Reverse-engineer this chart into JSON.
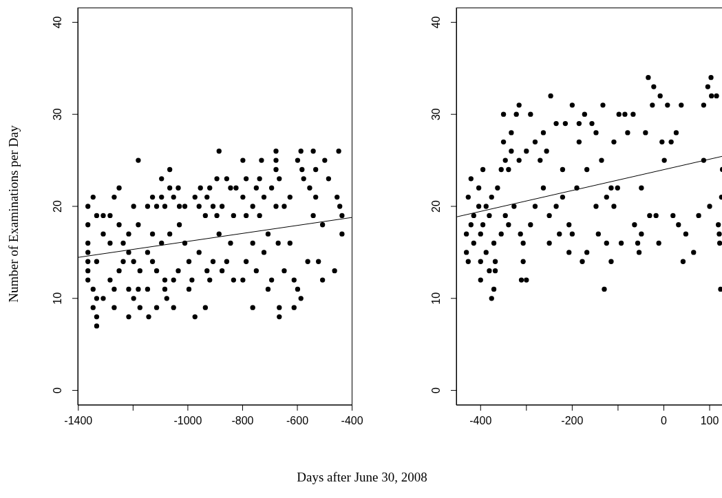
{
  "chart_data": [
    {
      "type": "scatter",
      "ylabel": "Number of Examinations per Day",
      "xlabel": "Days after June 30, 2008",
      "xlim": [
        -1402,
        -399
      ],
      "xticks": [
        -1400,
        {
          "value": -1200,
          "label": null
        },
        -1000,
        -800,
        -600,
        -400
      ],
      "ylim": [
        -1.6,
        41.6
      ],
      "yticks": [
        0,
        10,
        20,
        30,
        40
      ],
      "series": [
        {
          "marker": "circle",
          "color": "#000000",
          "x": [
            -1365,
            -1365,
            -1365,
            -1365,
            -1365,
            -1365,
            -1365,
            -1346,
            -1346,
            -1346,
            -1333,
            -1333,
            -1333,
            -1333,
            -1333,
            -1309,
            -1309,
            -1309,
            -1284,
            -1284,
            -1284,
            -1269,
            -1269,
            -1269,
            -1251,
            -1251,
            -1251,
            -1236,
            -1236,
            -1216,
            -1216,
            -1216,
            -1216,
            -1198,
            -1198,
            -1198,
            -1181,
            -1181,
            -1181,
            -1175,
            -1175,
            -1147,
            -1147,
            -1147,
            -1143,
            -1129,
            -1129,
            -1129,
            -1114,
            -1114,
            -1114,
            -1096,
            -1096,
            -1096,
            -1084,
            -1084,
            -1084,
            -1077,
            -1066,
            -1066,
            -1066,
            -1052,
            -1052,
            -1052,
            -1035,
            -1035,
            -1031,
            -1031,
            -1011,
            -1011,
            -996,
            -996,
            -985,
            -974,
            -974,
            -959,
            -959,
            -954,
            -936,
            -936,
            -930,
            -930,
            -920,
            -920,
            -908,
            -908,
            -894,
            -894,
            -886,
            -886,
            -875,
            -875,
            -858,
            -858,
            -844,
            -844,
            -833,
            -833,
            -824,
            -799,
            -799,
            -799,
            -787,
            -787,
            -787,
            -763,
            -763,
            -763,
            -750,
            -750,
            -738,
            -738,
            -731,
            -722,
            -722,
            -707,
            -707,
            -694,
            -694,
            -678,
            -678,
            -678,
            -678,
            -670,
            -666,
            -666,
            -666,
            -648,
            -648,
            -627,
            -627,
            -612,
            -612,
            -599,
            -599,
            -587,
            -587,
            -583,
            -577,
            -562,
            -555,
            -542,
            -542,
            -533,
            -533,
            -523,
            -508,
            -508,
            -500,
            -486,
            -464,
            -455,
            -449,
            -445,
            -437,
            -437
          ],
          "values": [
            20,
            18,
            16,
            15,
            14,
            13,
            12,
            21,
            9,
            11,
            7,
            8,
            10,
            19,
            14,
            10,
            17,
            19,
            19,
            12,
            16,
            21,
            9,
            11,
            22,
            18,
            13,
            16,
            14,
            8,
            11,
            17,
            15,
            10,
            20,
            14,
            25,
            11,
            18,
            9,
            13,
            20,
            11,
            15,
            8,
            21,
            17,
            14,
            9,
            20,
            13,
            23,
            21,
            16,
            11,
            20,
            12,
            10,
            24,
            22,
            17,
            9,
            21,
            12,
            22,
            13,
            20,
            18,
            20,
            16,
            11,
            14,
            12,
            8,
            21,
            20,
            15,
            22,
            9,
            19,
            21,
            13,
            22,
            12,
            14,
            20,
            23,
            19,
            26,
            17,
            13,
            20,
            23,
            14,
            22,
            16,
            12,
            19,
            22,
            25,
            21,
            12,
            23,
            14,
            19,
            9,
            20,
            16,
            22,
            13,
            23,
            19,
            25,
            21,
            15,
            11,
            17,
            22,
            12,
            26,
            25,
            24,
            20,
            16,
            23,
            9,
            8,
            20,
            13,
            21,
            16,
            9,
            12,
            25,
            11,
            10,
            26,
            24,
            23,
            14,
            22,
            26,
            19,
            24,
            21,
            14,
            18,
            12,
            25,
            23,
            13,
            21,
            26,
            20,
            17,
            19
          ]
        },
        {
          "type": "line",
          "color": "#000000",
          "x": [
            -1402,
            -399
          ],
          "values": [
            14.45,
            18.8
          ]
        }
      ]
    },
    {
      "type": "scatter",
      "xlim": [
        -453,
        133
      ],
      "xticks": [
        -400,
        {
          "value": -300,
          "label": null
        },
        -200,
        {
          "value": -100,
          "label": null
        },
        0,
        100
      ],
      "ylim": [
        -1.6,
        41.6
      ],
      "yticks": [
        0,
        10,
        20,
        30,
        40
      ],
      "series": [
        {
          "marker": "circle",
          "color": "#000000",
          "x": [
            -431,
            -431,
            -427,
            -427,
            -421,
            -421,
            -415,
            -415,
            -404,
            -404,
            -400,
            -400,
            -400,
            -395,
            -395,
            -388,
            -388,
            -381,
            -381,
            -376,
            -376,
            -371,
            -371,
            -368,
            -368,
            -363,
            -355,
            -355,
            -350,
            -350,
            -346,
            -346,
            -339,
            -339,
            -333,
            -333,
            -327,
            -322,
            -316,
            -316,
            -313,
            -311,
            -307,
            -307,
            -300,
            -300,
            -291,
            -291,
            -281,
            -281,
            -270,
            -263,
            -263,
            -256,
            -250,
            -250,
            -247,
            -235,
            -235,
            -228,
            -221,
            -221,
            -215,
            -207,
            -207,
            -200,
            -200,
            -190,
            -185,
            -185,
            -178,
            -173,
            -168,
            -168,
            -157,
            -148,
            -148,
            -143,
            -136,
            -133,
            -130,
            -125,
            -125,
            -115,
            -115,
            -109,
            -109,
            -101,
            -98,
            -93,
            -85,
            -79,
            -67,
            -64,
            -57,
            -54,
            -49,
            -49,
            -40,
            -34,
            -31,
            -25,
            -22,
            -17,
            -11,
            -8,
            -4,
            1,
            8,
            16,
            20,
            27,
            32,
            38,
            42,
            48,
            65,
            76,
            87,
            87,
            96,
            100,
            103,
            104,
            115,
            119,
            121,
            122,
            124,
            126,
            128
          ],
          "values": [
            15,
            17,
            14,
            21,
            23,
            18,
            19,
            16,
            22,
            20,
            12,
            14,
            17,
            24,
            18,
            15,
            20,
            13,
            19,
            10,
            21,
            11,
            16,
            13,
            14,
            22,
            17,
            24,
            30,
            27,
            25,
            19,
            18,
            24,
            26,
            28,
            20,
            30,
            31,
            25,
            17,
            12,
            14,
            16,
            26,
            12,
            30,
            18,
            27,
            20,
            25,
            28,
            22,
            26,
            16,
            19,
            32,
            29,
            20,
            17,
            24,
            21,
            29,
            15,
            18,
            31,
            17,
            22,
            29,
            27,
            14,
            30,
            15,
            24,
            29,
            28,
            20,
            17,
            25,
            31,
            11,
            16,
            21,
            14,
            22,
            27,
            20,
            22,
            30,
            16,
            30,
            28,
            30,
            18,
            16,
            15,
            17,
            22,
            28,
            34,
            19,
            31,
            33,
            19,
            16,
            32,
            27,
            25,
            31,
            27,
            19,
            28,
            18,
            31,
            14,
            17,
            15,
            19,
            31,
            25,
            33,
            20,
            34,
            32,
            32,
            18,
            17,
            16,
            11,
            21,
            24
          ]
        },
        {
          "type": "line",
          "color": "#000000",
          "x": [
            -453,
            133
          ],
          "values": [
            18.85,
            25.5
          ]
        }
      ]
    }
  ]
}
